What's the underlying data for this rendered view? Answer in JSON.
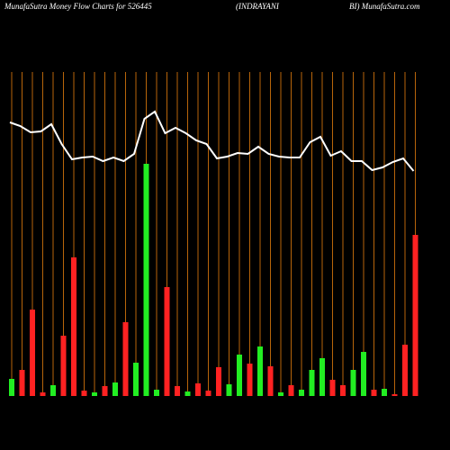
{
  "chart_data": {
    "type": "bar-line",
    "title": "MunafaSutra  Money Flow  Charts for 526445",
    "subtitle": "(INDRAYANI",
    "title_right": "BI) MunafaSutra.com",
    "ylim": [
      0,
      360
    ],
    "bars": {
      "values": [
        19,
        29,
        96,
        4,
        12,
        67,
        154,
        6,
        4,
        11,
        15,
        82,
        37,
        258,
        7,
        121,
        11,
        5,
        14,
        6,
        32,
        13,
        46,
        36,
        55,
        33,
        4,
        12,
        7,
        29,
        42,
        18,
        12,
        29,
        49,
        7,
        8,
        2,
        57,
        179
      ],
      "colors": [
        "#22ee22",
        "#ff2222",
        "#ff2222",
        "#ff2222",
        "#22ee22",
        "#ff2222",
        "#ff2222",
        "#ff2222",
        "#22ee22",
        "#ff2222",
        "#22ee22",
        "#ff2222",
        "#22ee22",
        "#22ee22",
        "#22ee22",
        "#ff2222",
        "#ff2222",
        "#22ee22",
        "#ff2222",
        "#ff2222",
        "#ff2222",
        "#22ee22",
        "#22ee22",
        "#ff2222",
        "#22ee22",
        "#ff2222",
        "#22ee22",
        "#ff2222",
        "#22ee22",
        "#22ee22",
        "#22ee22",
        "#ff2222",
        "#ff2222",
        "#22ee22",
        "#22ee22",
        "#ff2222",
        "#22ee22",
        "#ff2222",
        "#ff2222",
        "#ff2222"
      ]
    },
    "line": {
      "color": "#ffffff",
      "values": [
        304,
        300,
        293,
        294,
        302,
        280,
        263,
        265,
        266,
        261,
        265,
        261,
        269,
        308,
        316,
        292,
        298,
        292,
        284,
        280,
        264,
        266,
        270,
        269,
        277,
        269,
        266,
        265,
        265,
        282,
        288,
        267,
        272,
        261,
        261,
        251,
        254,
        260,
        264,
        250
      ]
    },
    "gridline_color": "#b8650a"
  }
}
